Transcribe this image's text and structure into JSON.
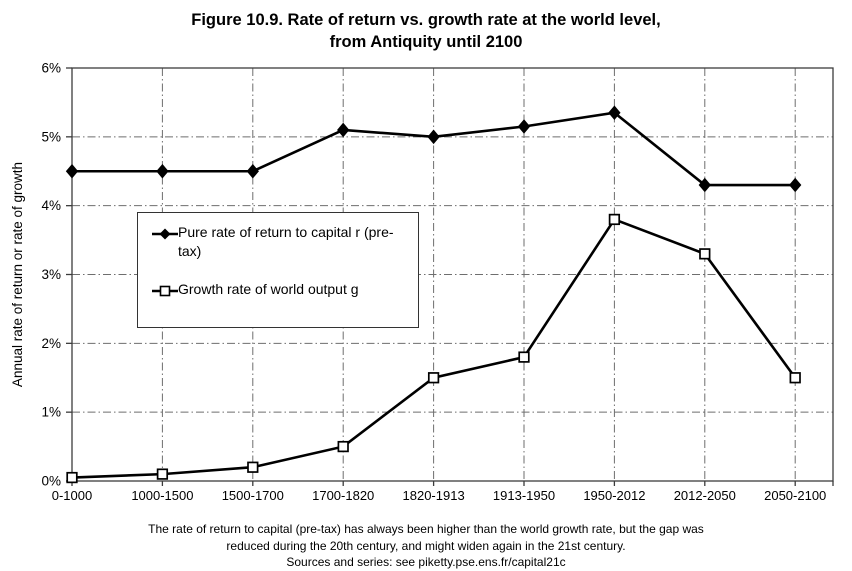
{
  "title": {
    "line1": "Figure 10.9. Rate of return vs. growth rate at the world level,",
    "line2": "from Antiquity until 2100"
  },
  "legend": {
    "items": [
      {
        "marker": "filled-diamond",
        "label": "Pure rate of return to capital r (pre-tax)"
      },
      {
        "marker": "open-square",
        "label": "Growth rate of world output g"
      }
    ]
  },
  "footnote": {
    "line1": "The rate of return to capital (pre-tax) has always been higher than the world growth rate, but the gap was",
    "line2": "reduced during the 20th century, and might widen again in the 21st century.",
    "line3": "Sources and series: see piketty.pse.ens.fr/capital21c"
  },
  "colors": {
    "series_line": "#000000",
    "grid": "#6e6e6e",
    "background": "#ffffff",
    "text": "#000000"
  },
  "chart_data": {
    "type": "line",
    "title": "Figure 10.9. Rate of return vs. growth rate at the world level, from Antiquity until 2100",
    "categories": [
      "0-1000",
      "1000-1500",
      "1500-1700",
      "1700-1820",
      "1820-1913",
      "1913-1950",
      "1950-2012",
      "2012-2050",
      "2050-2100"
    ],
    "series": [
      {
        "name": "Pure rate of return to capital r (pre-tax)",
        "marker": "filled-diamond",
        "values": [
          4.5,
          4.5,
          4.5,
          5.1,
          5.0,
          5.15,
          5.35,
          4.3,
          4.3
        ]
      },
      {
        "name": "Growth rate of world output g",
        "marker": "open-square",
        "values": [
          0.05,
          0.1,
          0.2,
          0.5,
          1.5,
          1.8,
          3.8,
          3.3,
          1.5
        ]
      }
    ],
    "xlabel": "",
    "ylabel": "Annual rate of return or rate of growth",
    "ylim": [
      0,
      6
    ],
    "yticks": [
      "0%",
      "1%",
      "2%",
      "3%",
      "4%",
      "5%",
      "6%"
    ],
    "ytick_format": "percent",
    "grid": true,
    "legend_position": "upper-left-inside"
  }
}
